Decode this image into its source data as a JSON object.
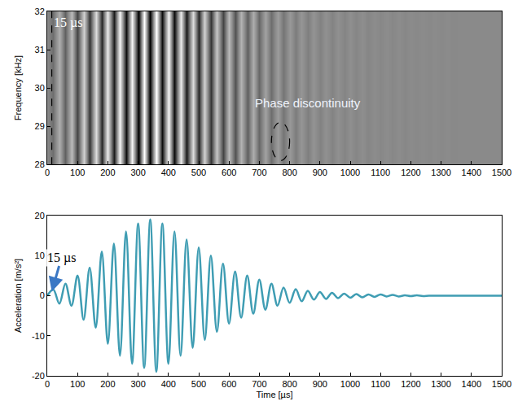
{
  "chart_data": [
    {
      "type": "heatmap",
      "x": [
        0,
        20,
        40,
        60,
        80,
        100,
        120,
        140,
        160,
        180,
        200,
        220,
        240,
        260,
        280,
        300,
        320,
        340,
        360,
        380,
        400,
        420,
        440,
        460,
        480,
        500,
        520,
        540,
        560,
        580,
        600,
        620,
        640,
        660,
        680,
        700,
        720,
        740,
        760,
        780,
        800,
        820,
        840,
        860,
        880,
        900,
        920,
        940,
        960,
        980,
        1000,
        1020,
        1040,
        1060,
        1080,
        1100,
        1120,
        1140,
        1160,
        1180,
        1200,
        1220,
        1240,
        1260,
        1280,
        1300,
        1320,
        1340,
        1360,
        1380,
        1400,
        1420,
        1440,
        1460,
        1480,
        1500
      ],
      "y": [
        28,
        32
      ],
      "z": [
        [
          0,
          -0.2,
          0.3,
          -0.3,
          0.4,
          -0.5,
          0.6,
          -0.6,
          0.7,
          -0.7,
          0.8,
          -0.8,
          0.9,
          -0.9,
          0.9,
          -1,
          1,
          -1,
          1,
          -0.9,
          0.9,
          -0.9,
          0.8,
          -0.8,
          0.7,
          -0.7,
          0.6,
          -0.6,
          0.5,
          -0.5,
          0.4,
          -0.4,
          0.35,
          -0.3,
          0.3,
          -0.25,
          0.2,
          -0.2,
          0.15,
          -0.15,
          0.12,
          -0.1,
          0.1,
          -0.08,
          0.08,
          -0.06,
          0.06,
          -0.05,
          0.05,
          -0.04,
          0.04,
          -0.03,
          0.03,
          -0.03,
          0.02,
          -0.02,
          0.02,
          -0.02,
          0.02,
          -0.02,
          0.01,
          -0.01,
          0.01,
          -0.01,
          0.01,
          -0.01,
          0.01,
          -0.01,
          0,
          0,
          0,
          0,
          0,
          0,
          0,
          0
        ],
        [
          0,
          -0.2,
          0.3,
          -0.3,
          0.4,
          -0.5,
          0.6,
          -0.6,
          0.7,
          -0.7,
          0.8,
          -0.8,
          0.9,
          -0.9,
          0.9,
          -1,
          1,
          -1,
          1,
          -0.9,
          0.9,
          -0.9,
          0.8,
          -0.8,
          0.7,
          -0.7,
          0.6,
          -0.6,
          0.5,
          -0.5,
          0.4,
          -0.4,
          0.35,
          -0.3,
          0.3,
          -0.25,
          0.2,
          -0.2,
          0.15,
          -0.15,
          0.12,
          -0.1,
          0.1,
          -0.08,
          0.08,
          -0.06,
          0.06,
          -0.05,
          0.05,
          -0.04,
          0.04,
          -0.03,
          0.03,
          -0.03,
          0.02,
          -0.02,
          0.02,
          -0.02,
          0.02,
          -0.02,
          0.01,
          -0.01,
          0.01,
          -0.01,
          0.01,
          -0.01,
          0.01,
          -0.01,
          0,
          0,
          0,
          0,
          0,
          0,
          0,
          0
        ]
      ],
      "zlim": [
        -1,
        1
      ],
      "xlim": [
        0,
        1500
      ],
      "xticks": [
        0,
        100,
        200,
        300,
        400,
        500,
        600,
        700,
        800,
        900,
        1000,
        1100,
        1200,
        1300,
        1400,
        1500
      ],
      "ylim": [
        28,
        32
      ],
      "yticks": [
        28,
        29,
        30,
        31,
        32
      ],
      "y_label": "Frequency [kHz]",
      "annotations": [
        {
          "text": "15 µs",
          "x": 15,
          "y": 31.7
        },
        {
          "text": "Phase discontinuity",
          "x": 860,
          "y": 29.6
        }
      ],
      "ellipse": {
        "x": [
          740,
          800
        ],
        "y": [
          28.1,
          29.1
        ]
      }
    },
    {
      "type": "line",
      "x": [
        0,
        20,
        40,
        60,
        80,
        100,
        120,
        140,
        160,
        180,
        200,
        220,
        240,
        260,
        280,
        300,
        320,
        340,
        360,
        380,
        400,
        420,
        440,
        460,
        480,
        500,
        520,
        540,
        560,
        580,
        600,
        620,
        640,
        660,
        680,
        700,
        720,
        740,
        760,
        780,
        800,
        820,
        840,
        860,
        880,
        900,
        920,
        940,
        960,
        980,
        1000,
        1020,
        1040,
        1060,
        1080,
        1100,
        1120,
        1140,
        1160,
        1180,
        1200,
        1220,
        1240,
        1260,
        1280,
        1300,
        1320,
        1340,
        1360,
        1380,
        1400,
        1420,
        1440,
        1460,
        1480,
        1500
      ],
      "values": [
        0,
        1.5,
        -2,
        3,
        -2.5,
        5,
        -6,
        7,
        -8,
        11,
        -12,
        13,
        -15,
        16,
        -17,
        18,
        -18,
        19,
        -19,
        18,
        -17,
        16,
        -15,
        14,
        -13,
        12,
        -11,
        10,
        -9,
        8,
        -7,
        6,
        -5.5,
        5,
        -4.5,
        4,
        -3.5,
        3,
        -2.5,
        2,
        -1.8,
        1.6,
        -1.4,
        1.2,
        -1,
        0.9,
        -0.8,
        0.7,
        -0.6,
        0.5,
        -0.5,
        0.4,
        -0.4,
        0.3,
        -0.3,
        0.3,
        -0.2,
        0.2,
        -0.2,
        0.1,
        -0.1,
        0.1,
        -0.1,
        0,
        0,
        0,
        0,
        0,
        0,
        0,
        0,
        0,
        0,
        0,
        0,
        0
      ],
      "color": "#3f9db3",
      "xlim": [
        0,
        1500
      ],
      "xticks": [
        0,
        100,
        200,
        300,
        400,
        500,
        600,
        700,
        800,
        900,
        1000,
        1100,
        1200,
        1300,
        1400,
        1500
      ],
      "ylim": [
        -20,
        20
      ],
      "yticks": [
        -20,
        -10,
        0,
        10,
        20
      ],
      "x_label": "Time [µs]",
      "y_label": "Acceleration [m/s²]",
      "annotations": [
        {
          "text": "15 µs",
          "x": 15,
          "y": 1
        }
      ]
    }
  ]
}
